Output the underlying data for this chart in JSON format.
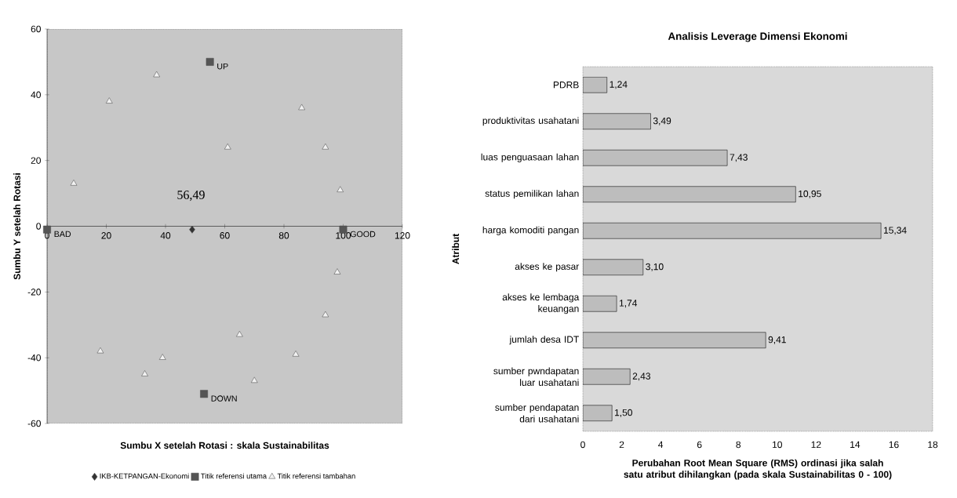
{
  "chart_data": [
    {
      "type": "scatter",
      "xlabel": "Sumbu X setelah Rotasi : skala Sustainabilitas",
      "ylabel": "Sumbu Y setelah Rotasi",
      "xlim": [
        0,
        120
      ],
      "ylim": [
        -60,
        60
      ],
      "xticks": [
        0,
        20,
        40,
        60,
        80,
        100,
        120
      ],
      "yticks": [
        -60,
        -40,
        -20,
        0,
        20,
        40,
        60
      ],
      "legend": "bottom",
      "annotations": [
        "56,49"
      ],
      "series": [
        {
          "name": "IKB-KETPANGAN-Ekonomi",
          "color": "#333333",
          "marker": "diamond",
          "x": [
            49
          ],
          "values": [
            -1
          ]
        },
        {
          "name": "Titik referensi utama",
          "color": "#555555",
          "marker": "square",
          "x": [
            0,
            100,
            55,
            53
          ],
          "values": [
            -1,
            -1,
            50,
            -51
          ],
          "value_labels": [
            "BAD",
            "GOOD",
            "UP",
            "DOWN"
          ]
        },
        {
          "name": "Titik referensi tambahan",
          "color": "#f2f2f2",
          "marker": "triangle",
          "x": [
            37,
            21,
            86,
            94,
            99,
            9,
            61,
            18,
            33,
            70,
            84,
            98,
            94,
            65,
            39
          ],
          "values": [
            46,
            38,
            36,
            24,
            11,
            13,
            24,
            -38,
            -45,
            -47,
            -39,
            -14,
            -27,
            -33,
            -40
          ]
        }
      ]
    },
    {
      "type": "bar",
      "orientation": "horizontal",
      "title": "Analisis Leverage Dimensi Ekonomi",
      "xlabel": "Perubahan Root Mean Square (RMS) ordinasi jika salah satu atribut dihilangkan (pada skala Sustainabilitas 0 - 100)",
      "ylabel": "Atribut",
      "xlim": [
        0,
        18
      ],
      "xticks": [
        0,
        2,
        4,
        6,
        8,
        10,
        12,
        14,
        16,
        18
      ],
      "color": "#bdbdbd",
      "categories": [
        "PDRB",
        "produktivitas usahatani",
        "luas penguasaan lahan",
        "status pemilikan lahan",
        "harga komoditi pangan",
        "akses ke pasar",
        "akses ke lembaga keuangan",
        "jumlah desa IDT",
        "sumber pwndapatan luar usahatani",
        "sumber pendapatan dari usahatani"
      ],
      "values": [
        1.24,
        3.49,
        7.43,
        10.95,
        15.34,
        3.1,
        1.74,
        9.41,
        2.43,
        1.5
      ],
      "value_labels": [
        "1,24",
        "3,49",
        "7,43",
        "10,95",
        "15,34",
        "3,10",
        "1,74",
        "9,41",
        "2,43",
        "1,50"
      ]
    }
  ]
}
